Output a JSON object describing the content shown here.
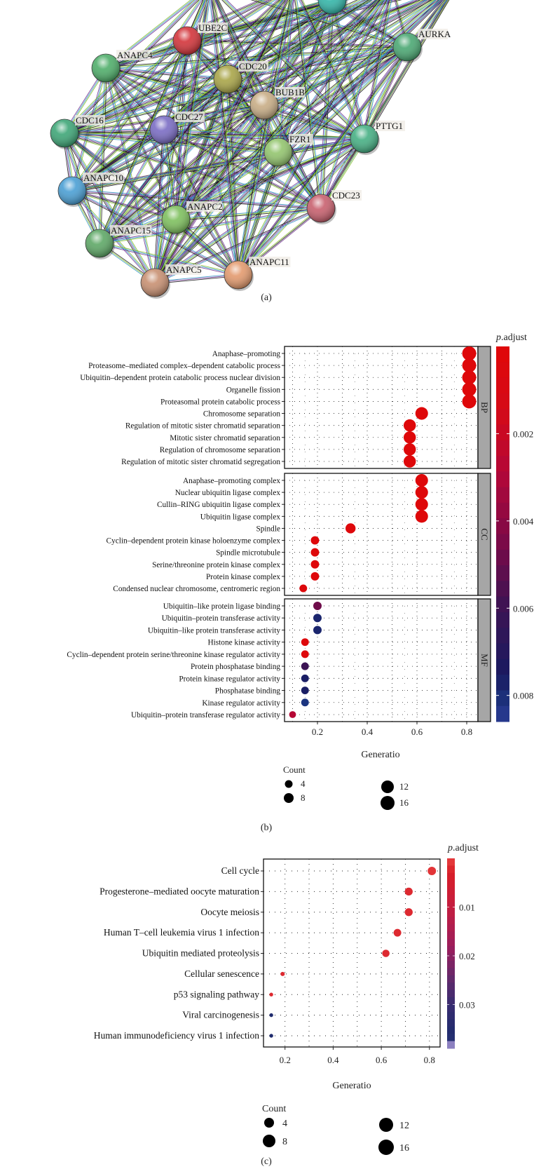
{
  "panel_labels": {
    "a": "(a)",
    "b": "(b)",
    "c": "(c)"
  },
  "network": {
    "edge_colors": [
      "#7fb81e",
      "#2a8fc2",
      "#6c2a8c",
      "#111111"
    ],
    "nodes": [
      {
        "id": "top",
        "label": "",
        "color": "#33b5a8"
      },
      {
        "id": "UBE2C",
        "label": "UBE2C",
        "color": "#d3343a"
      },
      {
        "id": "ANAPC4",
        "label": "ANAPC4",
        "color": "#4fae6a"
      },
      {
        "id": "CDC20",
        "label": "CDC20",
        "color": "#a9a548"
      },
      {
        "id": "BUB1B",
        "label": "BUB1B",
        "color": "#c8ad86"
      },
      {
        "id": "AURKA",
        "label": "AURKA",
        "color": "#4ba873"
      },
      {
        "id": "CDC16",
        "label": "CDC16",
        "color": "#3ea677"
      },
      {
        "id": "CDC27",
        "label": "CDC27",
        "color": "#7a6cc4"
      },
      {
        "id": "FZR1",
        "label": "FZR1",
        "color": "#93c56e"
      },
      {
        "id": "PTTG1",
        "label": "PTTG1",
        "color": "#46b084"
      },
      {
        "id": "ANAPC10",
        "label": "ANAPC10",
        "color": "#4a9fd4"
      },
      {
        "id": "CDC23",
        "label": "CDC23",
        "color": "#c8606e"
      },
      {
        "id": "ANAPC2",
        "label": "ANAPC2",
        "color": "#7ec05e"
      },
      {
        "id": "ANAPC15",
        "label": "ANAPC15",
        "color": "#5ea866"
      },
      {
        "id": "ANAPC5",
        "label": "ANAPC5",
        "color": "#c89072"
      },
      {
        "id": "ANAPC11",
        "label": "ANAPC11",
        "color": "#e39a6e"
      }
    ]
  },
  "chart_data": [
    {
      "type": "scatter",
      "xlabel": "Generatio",
      "xlim": [
        0.068,
        0.847
      ],
      "xticks": [
        "0.2",
        "0.4",
        "0.6",
        "0.8"
      ],
      "grid": true,
      "colorbar": {
        "title_italic": "p",
        "title_rest": ".adjust",
        "range": [
          0,
          0.0086
        ],
        "ticks": [
          "0.002",
          "0.004",
          "0.006",
          "0.008"
        ]
      },
      "size_legend": {
        "title": "Count",
        "values": [
          "4",
          "8",
          "12",
          "16"
        ]
      },
      "panels": [
        {
          "name": "BP",
          "terms": [
            "Anaphase–promoting",
            "Proteasome–mediated complex–dependent catabolic process",
            "Ubiquitin–dependent protein catabolic process nuclear division",
            "Organelle fission",
            "Proteasomal protein catabolic process",
            "Chromosome separation",
            "Regulation of mitotic sister chromatid separation",
            "Mitotic sister chromatid separation",
            "Regulation of chromosome separation",
            "Regulation of mitotic sister chromatid segregation"
          ],
          "generatio": [
            0.81,
            0.81,
            0.81,
            0.81,
            0.81,
            0.619,
            0.571,
            0.571,
            0.571,
            0.571
          ],
          "count": [
            17,
            17,
            17,
            17,
            17,
            13,
            12,
            12,
            12,
            12
          ],
          "p_adjust": [
            0.0002,
            0.0002,
            0.0002,
            0.0002,
            0.0002,
            0.0002,
            0.0002,
            0.0002,
            0.0002,
            0.0002
          ]
        },
        {
          "name": "CC",
          "terms": [
            "Anaphase–promoting complex",
            "Nuclear ubiquitin ligase complex",
            "Cullin–RING ubiquitin ligase complex",
            "Ubiquitin ligase complex",
            "Spindle",
            "Cyclin–dependent protein kinase holoenzyme complex",
            "Spindle microtubule",
            "Serine/threonine protein kinase complex",
            "Protein kinase complex",
            "Condensed nuclear chromosome, centromeric region"
          ],
          "generatio": [
            0.619,
            0.619,
            0.619,
            0.619,
            0.333,
            0.19,
            0.19,
            0.19,
            0.19,
            0.143
          ],
          "count": [
            13,
            13,
            13,
            13,
            7,
            4,
            4,
            4,
            4,
            3
          ],
          "p_adjust": [
            0.0002,
            0.0002,
            0.0002,
            0.0002,
            0.0003,
            0.0003,
            0.0003,
            0.0003,
            0.0003,
            0.0004
          ]
        },
        {
          "name": "MF",
          "terms": [
            "Ubiquitin–like protein ligase binding",
            "Ubiquitin–protein transferase activity",
            "Ubiquitin–like protein transferase activity",
            "Histone kinase activity",
            "Cyclin–dependent protein serine/threonine kinase regulator activity",
            "Protein phosphatase binding",
            "Protein kinase regulator activity",
            "Phosphatase binding",
            "Kinase regulator activity",
            "Ubiquitin–protein transferase regulator activity"
          ],
          "generatio": [
            0.2,
            0.2,
            0.2,
            0.15,
            0.15,
            0.15,
            0.15,
            0.15,
            0.15,
            0.1
          ],
          "count": [
            4,
            4,
            4,
            3,
            3,
            3,
            3,
            3,
            3,
            2
          ],
          "p_adjust": [
            0.0048,
            0.0078,
            0.0078,
            0.0003,
            0.0003,
            0.006,
            0.0076,
            0.0076,
            0.0082,
            0.0028
          ]
        }
      ]
    },
    {
      "type": "scatter",
      "xlabel": "Generatio",
      "xlim": [
        0.11,
        0.844
      ],
      "xticks": [
        "0.2",
        "0.4",
        "0.6",
        "0.8"
      ],
      "grid": true,
      "colorbar": {
        "title_italic": "p",
        "title_rest": ".adjust",
        "range": [
          0,
          0.039
        ],
        "ticks": [
          "0.01",
          "0.02",
          "0.03"
        ]
      },
      "size_legend": {
        "title": "Count",
        "values": [
          "4",
          "8",
          "12",
          "16"
        ]
      },
      "terms": [
        "Cell cycle",
        "Progesterone–mediated oocyte maturation",
        "Oocyte meiosis",
        "Human T–cell leukemia virus 1 infection",
        "Ubiquitin mediated proteolysis",
        "Cellular senescence",
        "p53 signaling pathway",
        "Viral carcinogenesis",
        "Human immunodeficiency virus 1 infection"
      ],
      "generatio": [
        0.81,
        0.714,
        0.714,
        0.667,
        0.619,
        0.19,
        0.143,
        0.143,
        0.143
      ],
      "count": [
        17,
        15,
        15,
        14,
        13,
        4,
        3,
        3,
        3
      ],
      "p_adjust": [
        0.001,
        0.002,
        0.002,
        0.002,
        0.002,
        0.002,
        0.002,
        0.036,
        0.036
      ]
    }
  ]
}
